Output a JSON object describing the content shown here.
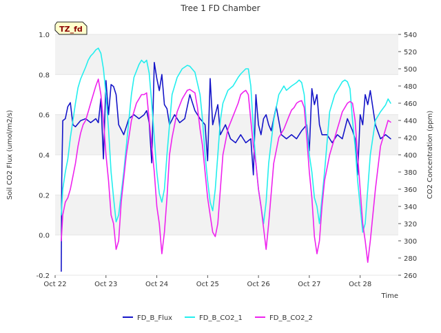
{
  "chart_data": {
    "type": "line",
    "title": "Tree 1 FD Chamber",
    "xlabel": "Time",
    "ylabel_left": "Soil CO2 Flux (umol/m2/s)",
    "ylabel_right": "CO2 Concentration (ppm)",
    "annotation": "TZ_fd",
    "xlim": [
      0,
      6.75
    ],
    "ylim_left": [
      -0.2,
      1.0
    ],
    "ylim_right": [
      260,
      540
    ],
    "x_ticks": [
      {
        "value": 0,
        "label": "Oct 22"
      },
      {
        "value": 1,
        "label": "Oct 23"
      },
      {
        "value": 2,
        "label": "Oct 24"
      },
      {
        "value": 3,
        "label": "Oct 25"
      },
      {
        "value": 4,
        "label": "Oct 26"
      },
      {
        "value": 5,
        "label": "Oct 27"
      },
      {
        "value": 6,
        "label": "Oct 28"
      }
    ],
    "y_ticks_left": [
      "-0.2",
      "0.0",
      "0.2",
      "0.4",
      "0.6",
      "0.8",
      "1.0"
    ],
    "y_ticks_right": [
      "260",
      "280",
      "300",
      "320",
      "340",
      "360",
      "380",
      "400",
      "420",
      "440",
      "460",
      "480",
      "500",
      "520",
      "540"
    ],
    "legend": [
      {
        "name": "FD_B_Flux",
        "color": "#1414c8"
      },
      {
        "name": "FD_B_CO2_1",
        "color": "#22eeee"
      },
      {
        "name": "FD_B_CO2_2",
        "color": "#ee22ee"
      }
    ],
    "series": [
      {
        "name": "FD_B_Flux",
        "axis": "left",
        "color": "#1414c8",
        "x": [
          0.12,
          0.13,
          0.15,
          0.2,
          0.25,
          0.3,
          0.35,
          0.4,
          0.5,
          0.6,
          0.7,
          0.8,
          0.85,
          0.9,
          0.95,
          1.0,
          1.05,
          1.1,
          1.15,
          1.2,
          1.25,
          1.35,
          1.45,
          1.55,
          1.65,
          1.75,
          1.8,
          1.85,
          1.9,
          1.95,
          2.0,
          2.05,
          2.1,
          2.15,
          2.2,
          2.25,
          2.35,
          2.45,
          2.55,
          2.65,
          2.75,
          2.85,
          2.95,
          3.0,
          3.05,
          3.1,
          3.15,
          3.2,
          3.25,
          3.35,
          3.45,
          3.55,
          3.65,
          3.75,
          3.85,
          3.9,
          3.95,
          4.0,
          4.05,
          4.1,
          4.15,
          4.2,
          4.25,
          4.35,
          4.45,
          4.55,
          4.65,
          4.75,
          4.85,
          4.95,
          5.0,
          5.05,
          5.1,
          5.15,
          5.2,
          5.25,
          5.35,
          5.45,
          5.55,
          5.65,
          5.75,
          5.85,
          5.9,
          5.95,
          6.0,
          6.05,
          6.1,
          6.15,
          6.2,
          6.3,
          6.4,
          6.5,
          6.6
        ],
        "y": [
          -0.18,
          0.28,
          0.57,
          0.58,
          0.64,
          0.66,
          0.55,
          0.54,
          0.57,
          0.58,
          0.56,
          0.58,
          0.56,
          0.68,
          0.38,
          0.77,
          0.6,
          0.75,
          0.74,
          0.7,
          0.55,
          0.5,
          0.58,
          0.6,
          0.58,
          0.6,
          0.62,
          0.56,
          0.36,
          0.86,
          0.78,
          0.72,
          0.8,
          0.65,
          0.63,
          0.55,
          0.6,
          0.56,
          0.58,
          0.7,
          0.62,
          0.58,
          0.55,
          0.37,
          0.78,
          0.55,
          0.6,
          0.65,
          0.5,
          0.55,
          0.48,
          0.46,
          0.5,
          0.46,
          0.48,
          0.3,
          0.7,
          0.55,
          0.5,
          0.58,
          0.6,
          0.55,
          0.52,
          0.64,
          0.5,
          0.48,
          0.5,
          0.48,
          0.52,
          0.55,
          0.42,
          0.73,
          0.65,
          0.7,
          0.55,
          0.5,
          0.5,
          0.46,
          0.5,
          0.48,
          0.58,
          0.52,
          0.48,
          0.3,
          0.6,
          0.55,
          0.7,
          0.65,
          0.72,
          0.55,
          0.48,
          0.5,
          0.48
        ]
      },
      {
        "name": "FD_B_CO2_1",
        "axis": "right",
        "color": "#22eeee",
        "x": [
          0.12,
          0.15,
          0.2,
          0.25,
          0.3,
          0.35,
          0.4,
          0.45,
          0.5,
          0.6,
          0.65,
          0.7,
          0.75,
          0.8,
          0.85,
          0.9,
          0.95,
          1.0,
          1.05,
          1.1,
          1.15,
          1.2,
          1.25,
          1.35,
          1.45,
          1.5,
          1.55,
          1.65,
          1.7,
          1.75,
          1.8,
          1.85,
          1.9,
          1.95,
          2.0,
          2.05,
          2.1,
          2.15,
          2.2,
          2.3,
          2.4,
          2.5,
          2.55,
          2.6,
          2.65,
          2.75,
          2.85,
          2.9,
          2.95,
          3.0,
          3.05,
          3.1,
          3.15,
          3.2,
          3.25,
          3.3,
          3.4,
          3.5,
          3.55,
          3.6,
          3.65,
          3.75,
          3.8,
          3.85,
          3.9,
          3.95,
          4.0,
          4.05,
          4.1,
          4.15,
          4.2,
          4.3,
          4.4,
          4.5,
          4.55,
          4.65,
          4.7,
          4.75,
          4.8,
          4.85,
          4.9,
          4.95,
          5.0,
          5.05,
          5.1,
          5.15,
          5.2,
          5.3,
          5.4,
          5.5,
          5.6,
          5.65,
          5.7,
          5.75,
          5.8,
          5.85,
          5.9,
          5.95,
          6.0,
          6.05,
          6.1,
          6.15,
          6.2,
          6.3,
          6.4,
          6.5,
          6.55,
          6.6
        ],
        "y": [
          330,
          360,
          380,
          395,
          420,
          440,
          460,
          478,
          488,
          502,
          510,
          515,
          518,
          522,
          524,
          518,
          500,
          470,
          430,
          380,
          350,
          322,
          330,
          380,
          440,
          470,
          490,
          505,
          510,
          507,
          510,
          495,
          460,
          420,
          380,
          355,
          345,
          360,
          400,
          470,
          490,
          500,
          502,
          504,
          503,
          496,
          470,
          440,
          400,
          370,
          345,
          335,
          360,
          400,
          440,
          460,
          475,
          480,
          485,
          490,
          494,
          500,
          500,
          480,
          430,
          390,
          360,
          340,
          320,
          345,
          390,
          440,
          470,
          480,
          475,
          480,
          482,
          484,
          487,
          484,
          470,
          430,
          400,
          380,
          350,
          340,
          320,
          380,
          450,
          470,
          480,
          485,
          487,
          485,
          477,
          440,
          410,
          370,
          340,
          310,
          320,
          360,
          400,
          440,
          450,
          458,
          465,
          460
        ]
      },
      {
        "name": "FD_B_CO2_2",
        "axis": "right",
        "color": "#ee22ee",
        "x": [
          0.12,
          0.15,
          0.2,
          0.25,
          0.3,
          0.35,
          0.4,
          0.45,
          0.5,
          0.55,
          0.6,
          0.65,
          0.7,
          0.75,
          0.8,
          0.85,
          0.9,
          0.95,
          1.0,
          1.05,
          1.1,
          1.15,
          1.2,
          1.25,
          1.3,
          1.4,
          1.5,
          1.6,
          1.65,
          1.7,
          1.75,
          1.8,
          1.85,
          1.9,
          1.95,
          2.0,
          2.05,
          2.1,
          2.15,
          2.2,
          2.25,
          2.3,
          2.4,
          2.5,
          2.55,
          2.6,
          2.65,
          2.7,
          2.75,
          2.8,
          2.85,
          2.9,
          2.95,
          3.0,
          3.05,
          3.1,
          3.15,
          3.2,
          3.25,
          3.3,
          3.4,
          3.5,
          3.6,
          3.65,
          3.7,
          3.75,
          3.8,
          3.85,
          3.9,
          3.95,
          4.0,
          4.05,
          4.1,
          4.15,
          4.2,
          4.3,
          4.4,
          4.5,
          4.6,
          4.65,
          4.7,
          4.75,
          4.8,
          4.85,
          4.9,
          4.95,
          5.0,
          5.05,
          5.1,
          5.15,
          5.2,
          5.25,
          5.3,
          5.4,
          5.5,
          5.6,
          5.65,
          5.7,
          5.75,
          5.8,
          5.85,
          5.9,
          5.95,
          6.0,
          6.05,
          6.1,
          6.15,
          6.2,
          6.3,
          6.4,
          6.5,
          6.55,
          6.6
        ],
        "y": [
          300,
          330,
          345,
          350,
          360,
          375,
          390,
          410,
          425,
          435,
          440,
          450,
          460,
          470,
          480,
          488,
          470,
          440,
          400,
          370,
          330,
          320,
          290,
          300,
          345,
          400,
          440,
          460,
          465,
          470,
          470,
          472,
          440,
          410,
          380,
          340,
          320,
          285,
          310,
          350,
          400,
          420,
          450,
          465,
          470,
          475,
          476,
          474,
          472,
          455,
          430,
          410,
          380,
          350,
          330,
          310,
          305,
          320,
          360,
          400,
          430,
          445,
          460,
          470,
          473,
          475,
          470,
          440,
          410,
          390,
          360,
          340,
          315,
          290,
          320,
          390,
          420,
          430,
          445,
          452,
          455,
          460,
          462,
          463,
          455,
          420,
          380,
          350,
          305,
          285,
          300,
          340,
          370,
          400,
          420,
          440,
          450,
          455,
          460,
          462,
          460,
          440,
          400,
          360,
          320,
          300,
          275,
          300,
          360,
          410,
          430,
          440,
          438
        ]
      }
    ]
  }
}
